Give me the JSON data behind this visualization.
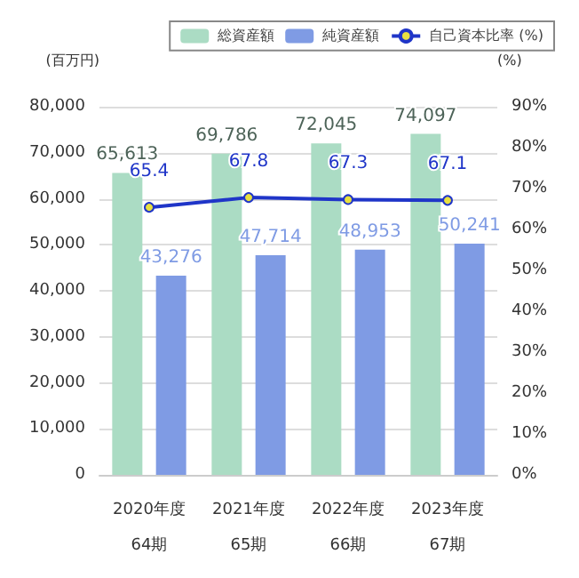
{
  "chart_data": {
    "type": "bar",
    "ylabel": "(百万円)",
    "y2label": "(%)",
    "categories": [
      "2020年度\n64期",
      "2021年度\n65期",
      "2022年度\n66期",
      "2023年度\n67期"
    ],
    "series": [
      {
        "name": "総資産額",
        "color": "#abdcc4",
        "values": [
          65613,
          69786,
          72045,
          74097
        ],
        "value_labels": [
          "65,613",
          "69,786",
          "72,045",
          "74,097"
        ]
      },
      {
        "name": "純資産額",
        "color": "#7f9be4",
        "values": [
          43276,
          47714,
          48953,
          50241
        ],
        "value_labels": [
          "43,276",
          "47,714",
          "48,953",
          "50,241"
        ]
      },
      {
        "name": "自己資本比率 (%)",
        "type": "line",
        "axis": "y2",
        "color": "#1f35c8",
        "values": [
          65.4,
          67.8,
          67.3,
          67.1
        ],
        "value_labels": [
          "65.4",
          "67.8",
          "67.3",
          "67.1"
        ]
      }
    ],
    "ylim": [
      0,
      80000
    ],
    "yticks": [
      {
        "value": 0,
        "label": "0"
      },
      {
        "value": 10000,
        "label": "10,000"
      },
      {
        "value": 20000,
        "label": "20,000"
      },
      {
        "value": 30000,
        "label": "30,000"
      },
      {
        "value": 40000,
        "label": "40,000"
      },
      {
        "value": 50000,
        "label": "50,000"
      },
      {
        "value": 60000,
        "label": "60,000"
      },
      {
        "value": 70000,
        "label": "70,000"
      },
      {
        "value": 80000,
        "label": "80,000"
      }
    ],
    "y2lim": [
      0,
      90
    ],
    "y2ticks": [
      {
        "value": 0,
        "label": "0%"
      },
      {
        "value": 10,
        "label": "10%"
      },
      {
        "value": 20,
        "label": "20%"
      },
      {
        "value": 30,
        "label": "30%"
      },
      {
        "value": 40,
        "label": "40%"
      },
      {
        "value": 50,
        "label": "50%"
      },
      {
        "value": 60,
        "label": "60%"
      },
      {
        "value": 70,
        "label": "70%"
      },
      {
        "value": 80,
        "label": "80%"
      },
      {
        "value": 90,
        "label": "90%"
      }
    ],
    "grid": "y",
    "legend": "top right",
    "marker": "circle",
    "line_style": "solid"
  }
}
